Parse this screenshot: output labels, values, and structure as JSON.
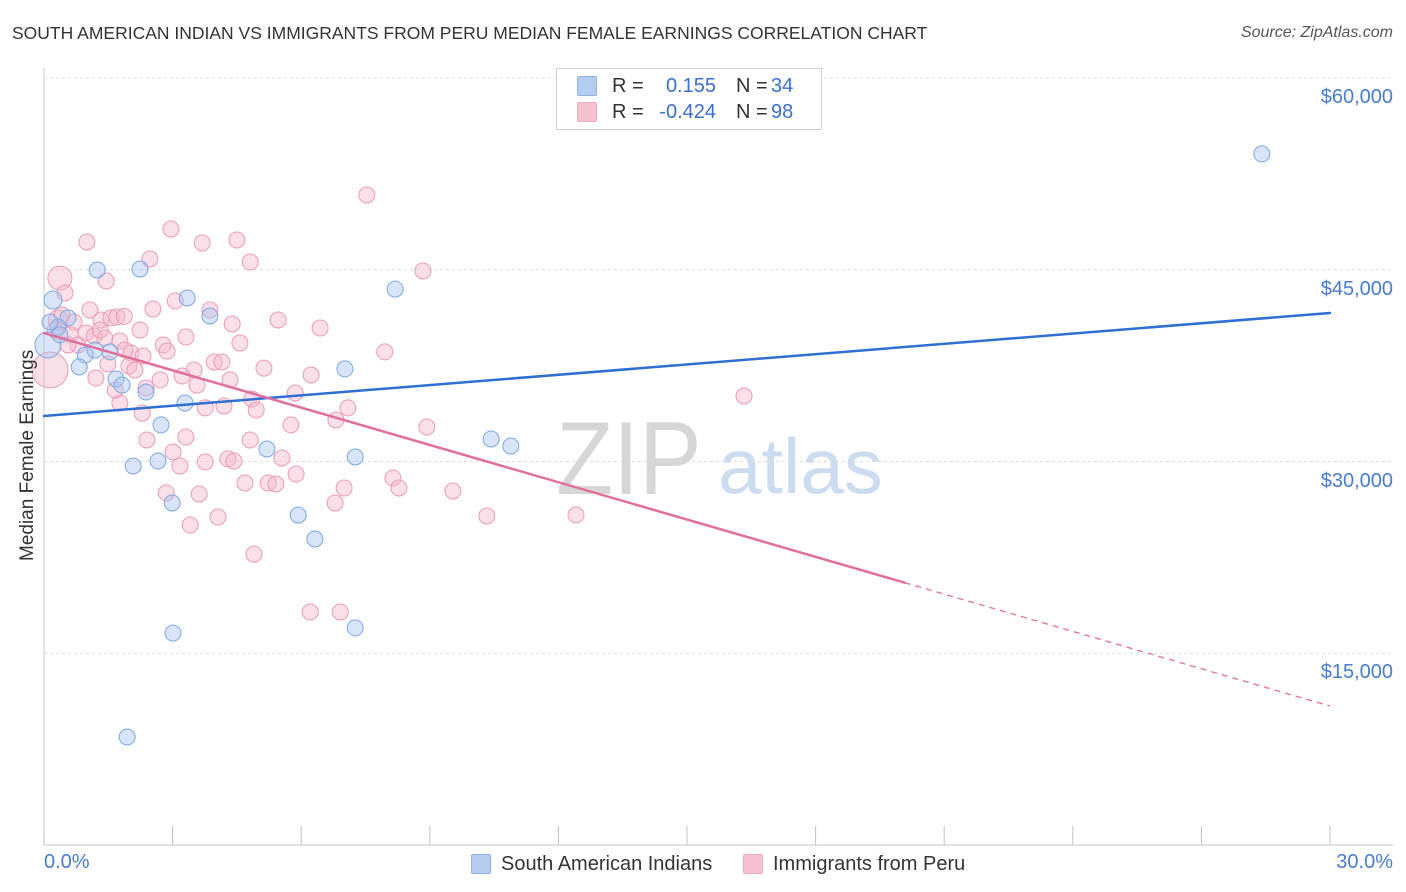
{
  "source": "Source: ZipAtlas.com",
  "watermark": {
    "zip": "ZIP",
    "atlas": "atlas"
  },
  "stats_legend": [
    {
      "r_label": "R =",
      "r_value": "0.155",
      "n_label": "N =",
      "n_value": "34"
    },
    {
      "r_label": "R =",
      "r_value": "-0.424",
      "n_label": "N =",
      "n_value": "98"
    }
  ],
  "chart_data": {
    "type": "scatter",
    "title": "SOUTH AMERICAN INDIAN VS IMMIGRANTS FROM PERU MEDIAN FEMALE EARNINGS CORRELATION CHART",
    "xlabel": "",
    "ylabel": "Median Female Earnings",
    "xlim": [
      0,
      30
    ],
    "ylim": [
      0,
      60000
    ],
    "grid": true,
    "legend_position": "bottom",
    "x_ticks": [
      {
        "value": 0,
        "label": "0.0%"
      },
      {
        "value": 30,
        "label": "30.0%"
      }
    ],
    "x_tick_marks": [
      0,
      3,
      6,
      9,
      12,
      15,
      18,
      21,
      24,
      27,
      30
    ],
    "y_ticks": [
      {
        "value": 60000,
        "label": "$60,000"
      },
      {
        "value": 45000,
        "label": "$45,000"
      },
      {
        "value": 30000,
        "label": "$30,000"
      },
      {
        "value": 15000,
        "label": "$15,000"
      }
    ],
    "series": [
      {
        "name": "South American Indians",
        "fill": "#a8c4ee",
        "stroke": "#7fa7df",
        "line_color": "#2e6fd1",
        "trend": {
          "x_start": 0,
          "y_start": 33560,
          "x_end": 30,
          "y_end": 41620
        },
        "points": [
          [
            28.41,
            54060
          ],
          [
            1.24,
            44980
          ],
          [
            2.24,
            45060
          ],
          [
            0.21,
            42630
          ],
          [
            3.34,
            42790
          ],
          [
            8.19,
            43490
          ],
          [
            3.87,
            41380
          ],
          [
            0.56,
            41230
          ],
          [
            0.33,
            40520
          ],
          [
            0.09,
            39110
          ],
          [
            0.96,
            38330
          ],
          [
            1.54,
            38570
          ],
          [
            0.82,
            37390
          ],
          [
            1.68,
            36450
          ],
          [
            1.82,
            35980
          ],
          [
            2.38,
            35440
          ],
          [
            7.02,
            37240
          ],
          [
            3.29,
            34580
          ],
          [
            2.73,
            32860
          ],
          [
            10.43,
            31760
          ],
          [
            10.89,
            31210
          ],
          [
            5.2,
            30980
          ],
          [
            2.66,
            30040
          ],
          [
            2.08,
            29650
          ],
          [
            7.26,
            30350
          ],
          [
            2.99,
            26750
          ],
          [
            5.93,
            25810
          ],
          [
            6.32,
            23940
          ],
          [
            3.01,
            16580
          ],
          [
            7.26,
            16980
          ],
          [
            1.94,
            8450
          ],
          [
            0.37,
            39900
          ],
          [
            1.19,
            38720
          ],
          [
            0.14,
            40910
          ]
        ]
      },
      {
        "name": "Immigrants from Peru",
        "fill": "#f5b8cb",
        "stroke": "#e99cb7",
        "line_color": "#e0709b",
        "trend": {
          "x_start": 0,
          "y_start": 40050,
          "x_end": 30,
          "y_end": 10870,
          "solid_until_x": 20.08
        },
        "points": [
          [
            7.53,
            50850
          ],
          [
            2.96,
            48190
          ],
          [
            1.0,
            47170
          ],
          [
            3.69,
            47090
          ],
          [
            4.5,
            47330
          ],
          [
            2.47,
            45840
          ],
          [
            4.81,
            45610
          ],
          [
            8.84,
            44900
          ],
          [
            0.37,
            44350
          ],
          [
            1.45,
            44120
          ],
          [
            0.49,
            43180
          ],
          [
            3.06,
            42560
          ],
          [
            2.54,
            41930
          ],
          [
            3.87,
            41850
          ],
          [
            1.33,
            41070
          ],
          [
            1.56,
            41230
          ],
          [
            1.7,
            41300
          ],
          [
            1.87,
            41350
          ],
          [
            5.46,
            41070
          ],
          [
            4.39,
            40760
          ],
          [
            6.44,
            40440
          ],
          [
            0.33,
            41070
          ],
          [
            0.7,
            40910
          ],
          [
            0.26,
            40290
          ],
          [
            0.61,
            39900
          ],
          [
            0.98,
            40050
          ],
          [
            1.17,
            39820
          ],
          [
            1.42,
            39660
          ],
          [
            1.77,
            39430
          ],
          [
            3.31,
            39740
          ],
          [
            4.57,
            39270
          ],
          [
            2.78,
            39110
          ],
          [
            2.87,
            38640
          ],
          [
            2.03,
            38490
          ],
          [
            2.31,
            38250
          ],
          [
            7.95,
            38570
          ],
          [
            3.97,
            37780
          ],
          [
            4.15,
            37780
          ],
          [
            1.49,
            37630
          ],
          [
            1.98,
            37470
          ],
          [
            3.5,
            37160
          ],
          [
            5.13,
            37310
          ],
          [
            0.14,
            37160
          ],
          [
            1.21,
            36530
          ],
          [
            3.22,
            36690
          ],
          [
            6.23,
            36770
          ],
          [
            3.57,
            35980
          ],
          [
            2.38,
            35750
          ],
          [
            5.86,
            35360
          ],
          [
            16.33,
            35120
          ],
          [
            1.77,
            34580
          ],
          [
            4.85,
            34890
          ],
          [
            4.2,
            34340
          ],
          [
            3.76,
            34190
          ],
          [
            4.95,
            34030
          ],
          [
            7.09,
            34190
          ],
          [
            2.29,
            33790
          ],
          [
            6.81,
            33250
          ],
          [
            5.76,
            32860
          ],
          [
            8.93,
            32700
          ],
          [
            2.4,
            31680
          ],
          [
            3.31,
            31920
          ],
          [
            3.01,
            30740
          ],
          [
            4.29,
            30200
          ],
          [
            4.43,
            30040
          ],
          [
            5.55,
            30270
          ],
          [
            3.76,
            29960
          ],
          [
            3.17,
            29650
          ],
          [
            5.88,
            29020
          ],
          [
            8.14,
            28710
          ],
          [
            4.69,
            28320
          ],
          [
            5.23,
            28320
          ],
          [
            5.41,
            28240
          ],
          [
            7.0,
            27930
          ],
          [
            8.28,
            27930
          ],
          [
            9.54,
            27690
          ],
          [
            2.85,
            27540
          ],
          [
            3.62,
            27460
          ],
          [
            6.79,
            26750
          ],
          [
            4.06,
            25660
          ],
          [
            10.33,
            25740
          ],
          [
            12.41,
            25820
          ],
          [
            3.41,
            25030
          ],
          [
            4.9,
            22760
          ],
          [
            6.21,
            18230
          ],
          [
            6.91,
            18230
          ],
          [
            0.42,
            41460
          ],
          [
            0.79,
            39110
          ],
          [
            1.31,
            40290
          ],
          [
            2.12,
            37160
          ],
          [
            1.66,
            35590
          ],
          [
            2.71,
            36380
          ],
          [
            4.34,
            36380
          ],
          [
            0.56,
            39110
          ],
          [
            1.07,
            41850
          ],
          [
            2.24,
            40290
          ],
          [
            4.81,
            31680
          ],
          [
            1.89,
            38720
          ]
        ]
      }
    ]
  }
}
